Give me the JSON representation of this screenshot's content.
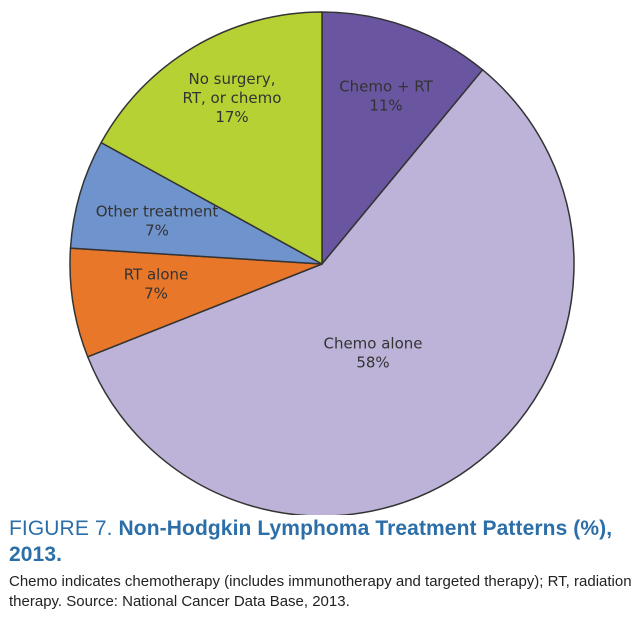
{
  "chart_data": {
    "type": "pie",
    "slices": [
      {
        "label_lines": [
          "Chemo + RT",
          "11%"
        ],
        "value": 11,
        "color": "#6a55a0"
      },
      {
        "label_lines": [
          "Chemo alone",
          "58%"
        ],
        "value": 58,
        "color": "#bdb3d9"
      },
      {
        "label_lines": [
          "RT alone",
          "7%"
        ],
        "value": 7,
        "color": "#e8772a"
      },
      {
        "label_lines": [
          "Other treatment",
          "7%"
        ],
        "value": 7,
        "color": "#6f93cc"
      },
      {
        "label_lines": [
          "No surgery,",
          "RT, or chemo",
          "17%"
        ],
        "value": 17,
        "color": "#b6d134"
      }
    ]
  },
  "caption": {
    "figure_number": "FIGURE 7.",
    "title": "Non-Hodgkin Lymphoma Treatment Patterns (%), 2013.",
    "description": "Chemo indicates chemotherapy (includes immunotherapy and targeted therapy); RT, radiation therapy. Source: National Cancer Data Base, 2013."
  },
  "colors": {
    "title": "#2c6fa8",
    "outline": "#333333"
  }
}
